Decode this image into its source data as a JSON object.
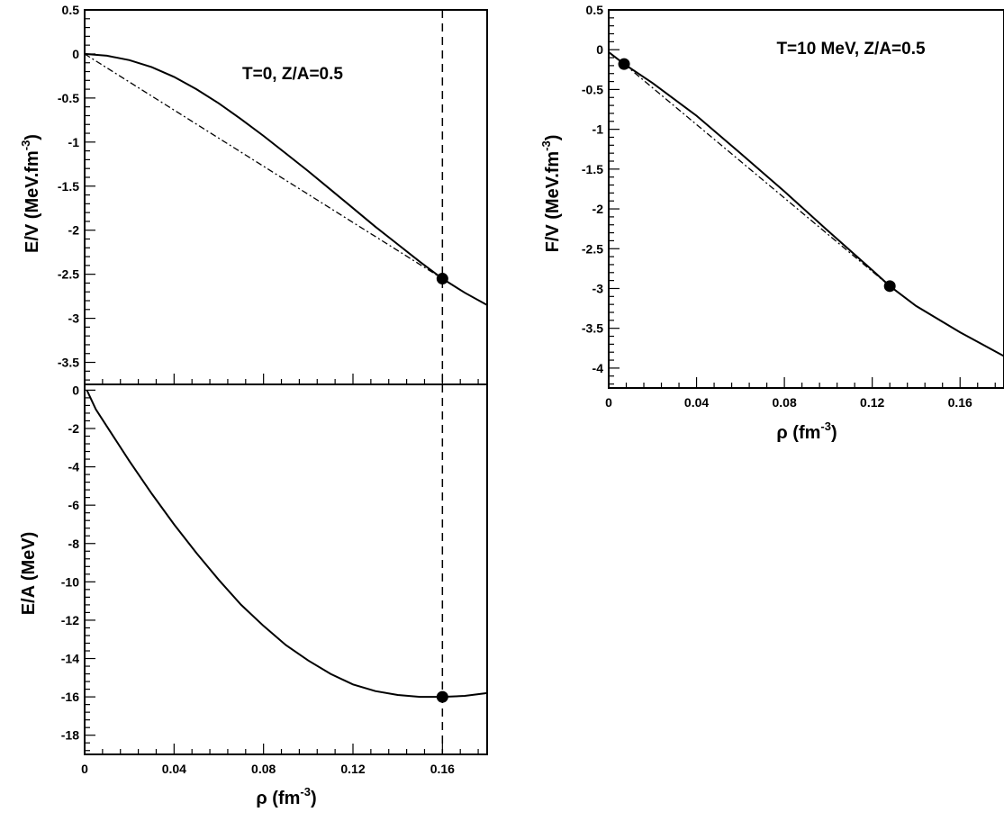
{
  "chart_data": [
    {
      "id": "ev",
      "type": "line",
      "title": "T=0, Z/A=0.5",
      "ylabel_main": "E/V (MeV.fm",
      "ylabel_sup": "-3",
      "ylabel_close": ")",
      "xlim": [
        0,
        0.18
      ],
      "ylim": [
        -3.75,
        0.5
      ],
      "yticks": [
        0.5,
        0,
        -0.5,
        -1,
        -1.5,
        -2,
        -2.5,
        -3,
        -3.5
      ],
      "yticklabels": [
        "0.5",
        "0",
        "-0.5",
        "-1",
        "-1.5",
        "-2",
        "-2.5",
        "-3",
        "-3.5"
      ],
      "series": [
        {
          "style": "solid",
          "x": [
            0,
            0.01,
            0.02,
            0.03,
            0.04,
            0.05,
            0.06,
            0.07,
            0.08,
            0.09,
            0.1,
            0.11,
            0.12,
            0.13,
            0.14,
            0.15,
            0.16,
            0.17,
            0.18
          ],
          "y": [
            0,
            -0.02,
            -0.07,
            -0.15,
            -0.26,
            -0.4,
            -0.56,
            -0.74,
            -0.93,
            -1.13,
            -1.33,
            -1.54,
            -1.75,
            -1.96,
            -2.16,
            -2.36,
            -2.55,
            -2.71,
            -2.85
          ]
        },
        {
          "style": "dashdot",
          "x": [
            0,
            0.16
          ],
          "y": [
            0,
            -2.55
          ]
        }
      ],
      "markers": [
        {
          "x": 0.16,
          "y": -2.55
        }
      ],
      "vline": 0.16
    },
    {
      "id": "ea",
      "type": "line",
      "ylabel_main": "E/A (MeV)",
      "xlabel_main": "ρ (fm",
      "xlabel_sup": "-3",
      "xlabel_close": ")",
      "xlim": [
        0,
        0.18
      ],
      "ylim": [
        -19,
        0.3
      ],
      "xticks": [
        0,
        0.04,
        0.08,
        0.12,
        0.16
      ],
      "xticklabels": [
        "0",
        "0.04",
        "0.08",
        "0.12",
        "0.16"
      ],
      "yticks": [
        0,
        -2,
        -4,
        -6,
        -8,
        -10,
        -12,
        -14,
        -16,
        -18
      ],
      "yticklabels": [
        "0",
        "-2",
        "-4",
        "-6",
        "-8",
        "-10",
        "-12",
        "-14",
        "-16",
        "-18"
      ],
      "series": [
        {
          "style": "solid",
          "x": [
            0.001,
            0.005,
            0.01,
            0.02,
            0.03,
            0.04,
            0.05,
            0.06,
            0.07,
            0.08,
            0.09,
            0.1,
            0.11,
            0.12,
            0.13,
            0.14,
            0.15,
            0.16,
            0.17,
            0.18
          ],
          "y": [
            0,
            -1.0,
            -1.9,
            -3.7,
            -5.4,
            -7.0,
            -8.5,
            -9.9,
            -11.2,
            -12.3,
            -13.3,
            -14.1,
            -14.8,
            -15.35,
            -15.7,
            -15.9,
            -16.0,
            -16.0,
            -15.95,
            -15.8
          ]
        }
      ],
      "markers": [
        {
          "x": 0.16,
          "y": -16.0
        }
      ],
      "vline": 0.16
    },
    {
      "id": "fv",
      "type": "line",
      "title": "T=10 MeV, Z/A=0.5",
      "ylabel_main": "F/V (MeV.fm",
      "ylabel_sup": "-3",
      "ylabel_close": ")",
      "xlabel_main": "ρ (fm",
      "xlabel_sup": "-3",
      "xlabel_close": ")",
      "xlim": [
        0,
        0.18
      ],
      "ylim": [
        -4.25,
        0.5
      ],
      "xticks": [
        0,
        0.04,
        0.08,
        0.12,
        0.16
      ],
      "xticklabels": [
        "0",
        "0.04",
        "0.08",
        "0.12",
        "0.16"
      ],
      "yticks": [
        0.5,
        0,
        -0.5,
        -1,
        -1.5,
        -2,
        -2.5,
        -3,
        -3.5,
        -4
      ],
      "yticklabels": [
        "0.5",
        "0",
        "-0.5",
        "-1",
        "-1.5",
        "-2",
        "-2.5",
        "-3",
        "-3.5",
        "-4"
      ],
      "series": [
        {
          "style": "solid",
          "x": [
            0,
            0.007,
            0.02,
            0.04,
            0.06,
            0.08,
            0.1,
            0.12,
            0.128,
            0.14,
            0.16,
            0.18
          ],
          "y": [
            -0.03,
            -0.18,
            -0.42,
            -0.83,
            -1.3,
            -1.78,
            -2.28,
            -2.77,
            -2.97,
            -3.22,
            -3.55,
            -3.85
          ]
        },
        {
          "style": "dashdot",
          "x": [
            0.007,
            0.128
          ],
          "y": [
            -0.18,
            -2.97
          ]
        }
      ],
      "markers": [
        {
          "x": 0.007,
          "y": -0.18
        },
        {
          "x": 0.128,
          "y": -2.97
        }
      ]
    }
  ]
}
